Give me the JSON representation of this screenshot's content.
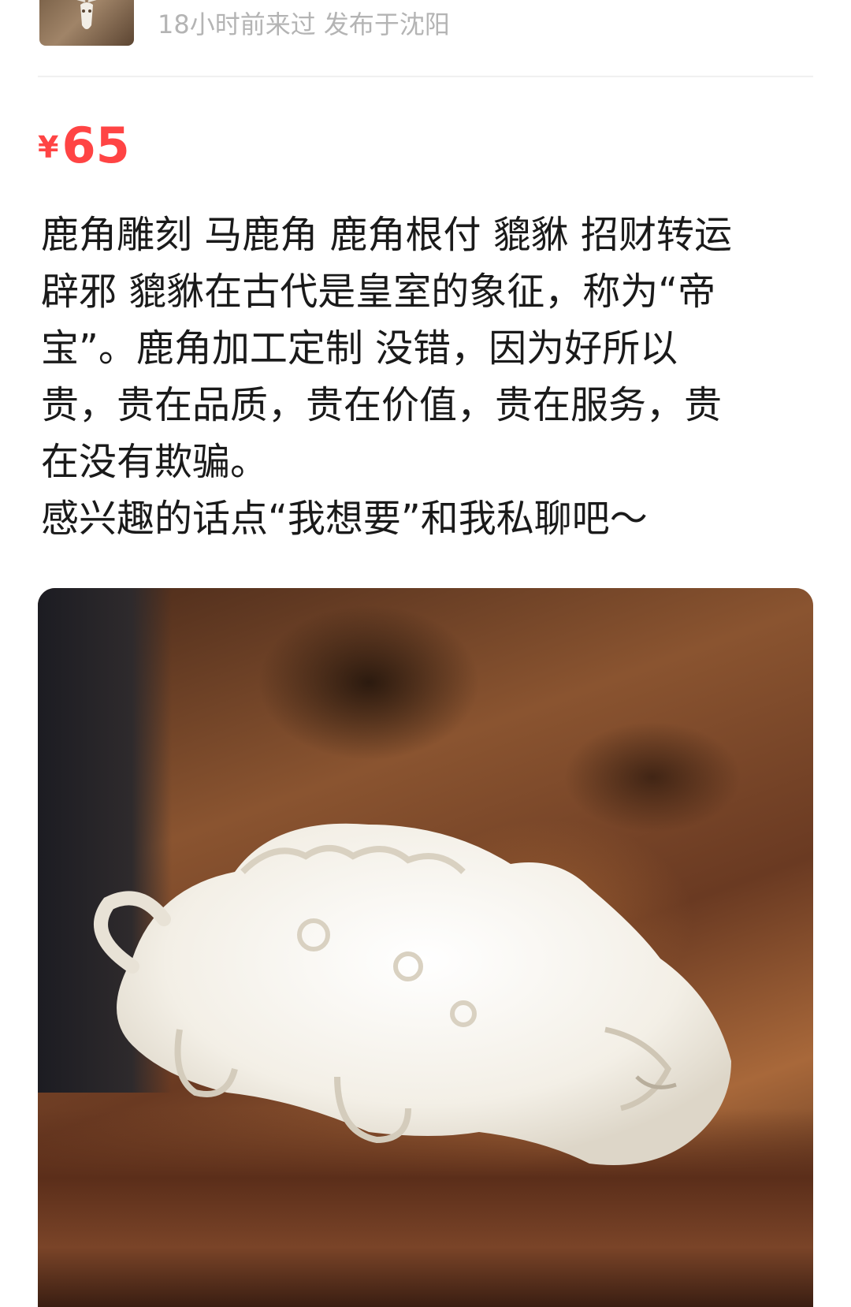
{
  "seller": {
    "meta": "18小时前来过 发布于沈阳",
    "avatar_icon": "antler-skull-avatar-icon"
  },
  "listing": {
    "currency": "¥",
    "price": "65",
    "price_color": "#ff4444",
    "description_lines": [
      "鹿角雕刻 马鹿角 鹿角根付 貔貅 招财转运",
      "辟邪 貔貅在古代是皇室的象征，称为“帝",
      "宝”。鹿角加工定制  没错，因为好所以",
      "贵，贵在品质，贵在价值，贵在服务，贵",
      "在没有欺骗。",
      "感兴趣的话点“我想要”和我私聊吧～"
    ]
  },
  "photo": {
    "subject": "white-antler-carved-pixiu-on-wood"
  }
}
